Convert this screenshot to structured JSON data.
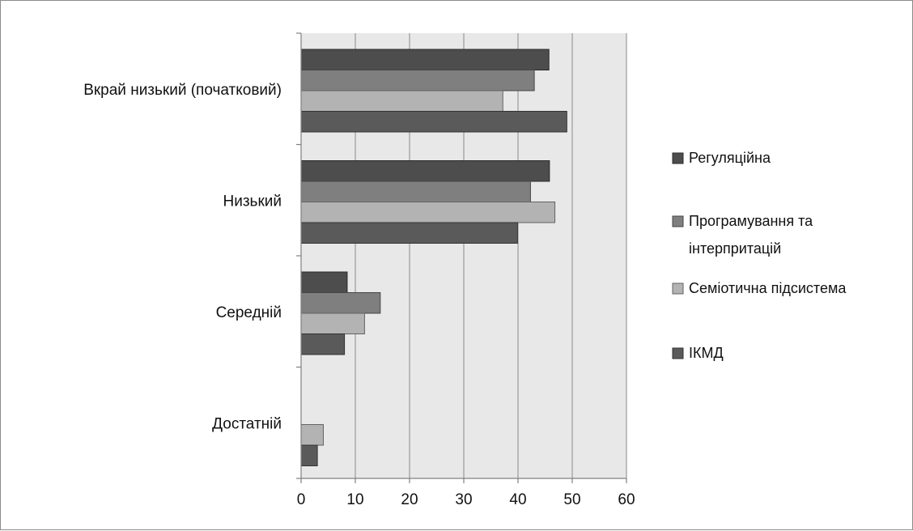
{
  "chart_data": {
    "type": "bar",
    "orientation": "horizontal",
    "categories": [
      "Вкрай низький (початковий)",
      "Низький",
      "Середній",
      "Достатній"
    ],
    "series": [
      {
        "name": "Регуляційна",
        "values": [
          45.7,
          45.8,
          8.5,
          0
        ],
        "color": "#4d4d4d"
      },
      {
        "name": "Програмування та інтерпритацій",
        "values": [
          43.0,
          42.3,
          14.6,
          0
        ],
        "color": "#7f7f7f"
      },
      {
        "name": "Семіотична підсистема",
        "values": [
          37.2,
          46.8,
          11.7,
          4.1
        ],
        "color": "#b3b3b3"
      },
      {
        "name": "ІКМД",
        "values": [
          49.0,
          39.9,
          8.0,
          3.0
        ],
        "color": "#5a5a5a"
      }
    ],
    "legend_lines": [
      [
        "Регуляційна"
      ],
      [
        "Програмування та",
        "інтерпритацій"
      ],
      [
        "Семіотична підсистема"
      ],
      [
        "ІКМД"
      ]
    ],
    "xlim": [
      0,
      60
    ],
    "xticks": [
      0,
      10,
      20,
      30,
      40,
      50,
      60
    ],
    "grid": true,
    "legend_position": "right",
    "plot_background": "#e8e8e8"
  }
}
